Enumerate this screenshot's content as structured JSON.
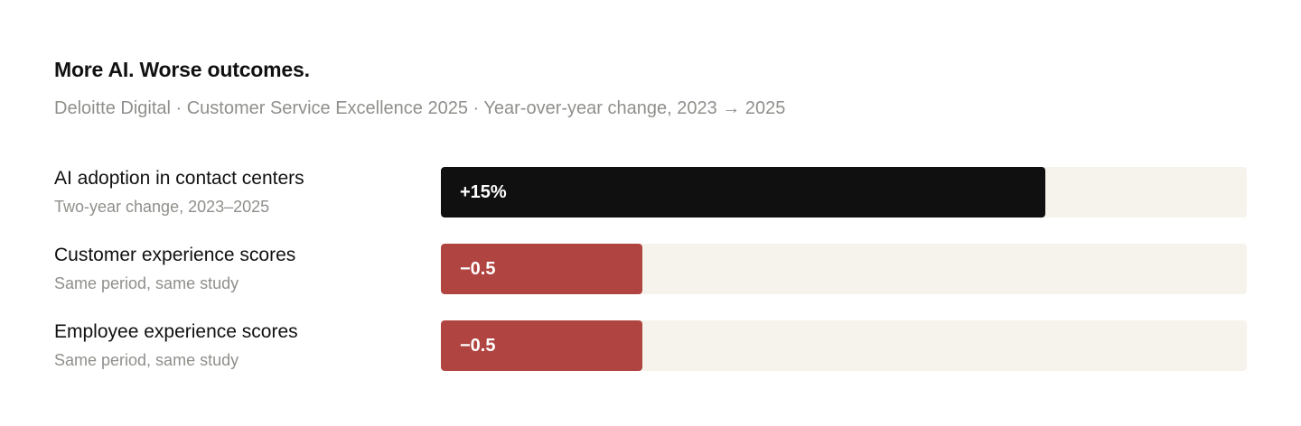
{
  "chart_data": {
    "type": "bar",
    "orientation": "horizontal",
    "title": "More AI. Worse outcomes.",
    "subtitle": "Deloitte Digital · Customer Service Excellence 2025 · Year-over-year change, 2023 → 2025",
    "categories": [
      "AI adoption in contact centers",
      "Customer experience scores",
      "Employee experience scores"
    ],
    "category_notes": [
      "Two-year change, 2023–2025",
      "Same period, same study",
      "Same period, same study"
    ],
    "values": [
      15,
      -0.5,
      -0.5
    ],
    "value_labels": [
      "+15%",
      "−0.5",
      "−0.5"
    ],
    "bar_fill_fraction": [
      0.75,
      0.25,
      0.25
    ],
    "colors": [
      "#0f100f",
      "#b04441",
      "#b04441"
    ],
    "track_color": "#f6f3ec",
    "grid": false,
    "legend": "none"
  }
}
